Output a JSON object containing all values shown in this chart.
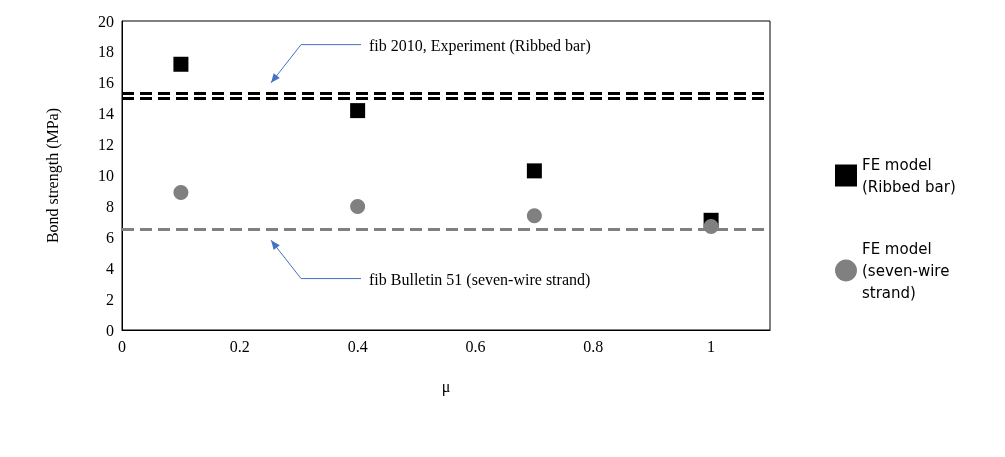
{
  "chart_data": {
    "type": "scatter",
    "xlabel": "μ",
    "ylabel": "Bond strength (MPa)",
    "x": [
      0.1,
      0.4,
      0.7,
      1.0
    ],
    "series": [
      {
        "name": "FE model (Ribbed bar)",
        "color": "#000000",
        "marker": "square",
        "values": [
          17.2,
          14.2,
          10.3,
          7.1
        ]
      },
      {
        "name": "FE model (seven-wire strand)",
        "color": "#808080",
        "marker": "circle",
        "values": [
          8.9,
          8.0,
          7.4,
          6.7
        ]
      }
    ],
    "xlim": [
      0,
      1.1
    ],
    "xticks": [
      0,
      0.2,
      0.4,
      0.6,
      0.8,
      1
    ],
    "ylim": [
      0,
      20
    ],
    "yticks": [
      0,
      2,
      4,
      6,
      8,
      10,
      12,
      14,
      16,
      18,
      20
    ],
    "ref_lines": [
      {
        "axis": "y",
        "value": 15.3,
        "color": "#000000",
        "line_style": "dashed"
      },
      {
        "axis": "y",
        "value": 15.0,
        "color": "#000000",
        "line_style": "dashed"
      },
      {
        "axis": "y",
        "value": 6.5,
        "color": "#808080",
        "line_style": "dashed"
      }
    ],
    "annotations": [
      "fib 2010, Experiment (Ribbed bar)",
      "fib Bulletin 51  (seven-wire strand)"
    ],
    "grid": false,
    "legend": "right"
  }
}
